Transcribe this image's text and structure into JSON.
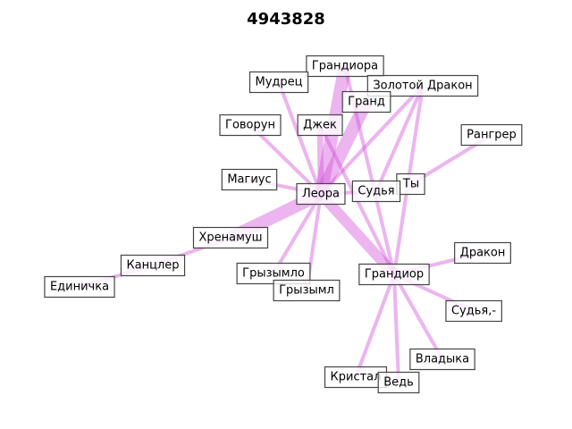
{
  "title": "4943828",
  "edge_color": "#d24ed8",
  "nodes": [
    {
      "id": "grandiora",
      "label": "Грандиора"
    },
    {
      "id": "mudrets",
      "label": "Мудрец"
    },
    {
      "id": "zolotoy",
      "label": "Золотой Дракон"
    },
    {
      "id": "grand",
      "label": "Гранд"
    },
    {
      "id": "govorun",
      "label": "Говорун"
    },
    {
      "id": "dzhek",
      "label": "Джек"
    },
    {
      "id": "rangrer",
      "label": "Рангрер"
    },
    {
      "id": "magius",
      "label": "Магиус"
    },
    {
      "id": "ty",
      "label": "Ты"
    },
    {
      "id": "leora",
      "label": "Леора"
    },
    {
      "id": "sudya",
      "label": "Судья"
    },
    {
      "id": "khrenamush",
      "label": "Хренамуш"
    },
    {
      "id": "drakon",
      "label": "Дракон"
    },
    {
      "id": "kantsler",
      "label": "Канцлер"
    },
    {
      "id": "gryzymlo",
      "label": "Грызымло"
    },
    {
      "id": "grandior",
      "label": "Грандиор"
    },
    {
      "id": "edinichka",
      "label": "Единичка"
    },
    {
      "id": "gryzyml",
      "label": "Грызымл"
    },
    {
      "id": "sudya2",
      "label": "Судья,-"
    },
    {
      "id": "vladyka",
      "label": "Владыка"
    },
    {
      "id": "kristal",
      "label": "Кристал"
    },
    {
      "id": "ved",
      "label": "Ведь"
    }
  ],
  "edges": [
    {
      "source": "leora",
      "target": "grandiora",
      "weight": 5
    },
    {
      "source": "leora",
      "target": "grand",
      "weight": 5
    },
    {
      "source": "leora",
      "target": "khrenamush",
      "weight": 5
    },
    {
      "source": "leora",
      "target": "grandior",
      "weight": 4
    },
    {
      "source": "leora",
      "target": "dzhek",
      "weight": 2
    },
    {
      "source": "leora",
      "target": "mudrets",
      "weight": 1
    },
    {
      "source": "leora",
      "target": "govorun",
      "weight": 1
    },
    {
      "source": "leora",
      "target": "magius",
      "weight": 1
    },
    {
      "source": "leora",
      "target": "zolotoy",
      "weight": 1
    },
    {
      "source": "leora",
      "target": "gryzymlo",
      "weight": 1
    },
    {
      "source": "leora",
      "target": "gryzyml",
      "weight": 1
    },
    {
      "source": "leora",
      "target": "sudya",
      "weight": 1
    },
    {
      "source": "khrenamush",
      "target": "kantsler",
      "weight": 1
    },
    {
      "source": "kantsler",
      "target": "edinichka",
      "weight": 1
    },
    {
      "source": "grandior",
      "target": "dzhek",
      "weight": 1
    },
    {
      "source": "grandior",
      "target": "zolotoy",
      "weight": 1
    },
    {
      "source": "grandior",
      "target": "drakon",
      "weight": 1
    },
    {
      "source": "grandior",
      "target": "sudya2",
      "weight": 1
    },
    {
      "source": "grandior",
      "target": "vladyka",
      "weight": 1
    },
    {
      "source": "grandior",
      "target": "kristal",
      "weight": 1
    },
    {
      "source": "grandior",
      "target": "ved",
      "weight": 1
    },
    {
      "source": "grandior",
      "target": "grandiora",
      "weight": 1
    },
    {
      "source": "sudya",
      "target": "zolotoy",
      "weight": 1
    },
    {
      "source": "ty",
      "target": "rangrer",
      "weight": 1
    }
  ]
}
